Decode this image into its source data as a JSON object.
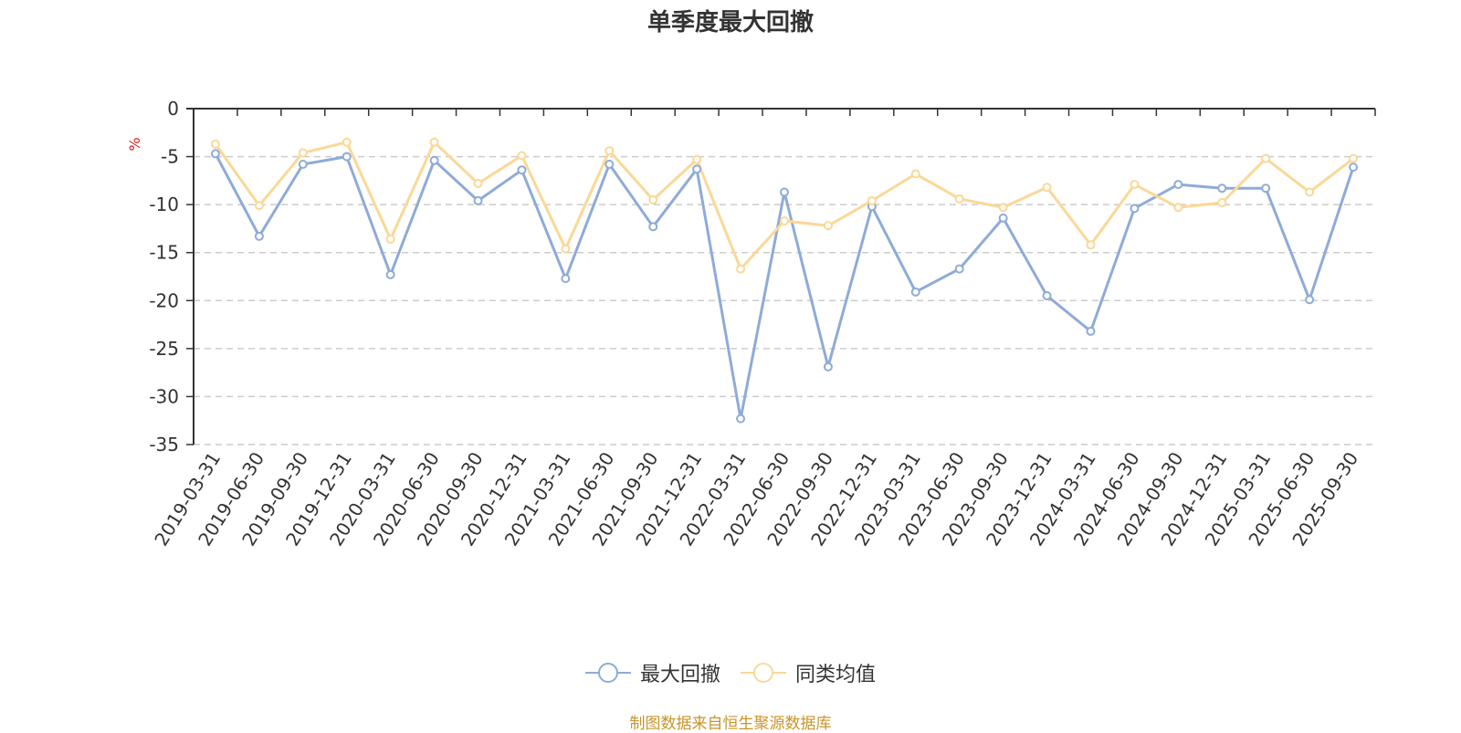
{
  "chart_data": {
    "type": "line",
    "title": "单季度最大回撤",
    "ylabel": "%",
    "ylim": [
      -35,
      0
    ],
    "yticks": [
      0,
      -5,
      -10,
      -15,
      -20,
      -25,
      -30,
      -35
    ],
    "grid": true,
    "legend_position": "bottom",
    "categories": [
      "2019-03-31",
      "2019-06-30",
      "2019-09-30",
      "2019-12-31",
      "2020-03-31",
      "2020-06-30",
      "2020-09-30",
      "2020-12-31",
      "2021-03-31",
      "2021-06-30",
      "2021-09-30",
      "2021-12-31",
      "2022-03-31",
      "2022-06-30",
      "2022-09-30",
      "2022-12-31",
      "2023-03-31",
      "2023-06-30",
      "2023-09-30",
      "2023-12-31",
      "2024-03-31",
      "2024-06-30",
      "2024-09-30",
      "2024-12-31",
      "2025-03-31",
      "2025-06-30",
      "2025-09-30"
    ],
    "series": [
      {
        "name": "最大回撤",
        "color": "#8eabd8",
        "values": [
          -4.7,
          -13.3,
          -5.8,
          -5.0,
          -17.3,
          -5.4,
          -9.6,
          -6.4,
          -17.7,
          -5.8,
          -12.3,
          -6.3,
          -32.3,
          -8.7,
          -26.9,
          -10.2,
          -19.1,
          -16.7,
          -11.4,
          -19.5,
          -23.2,
          -10.4,
          -7.9,
          -8.3,
          -8.3,
          -19.9,
          -6.1
        ]
      },
      {
        "name": "同类均值",
        "color": "#fad896",
        "values": [
          -3.7,
          -10.1,
          -4.6,
          -3.5,
          -13.6,
          -3.5,
          -7.8,
          -4.9,
          -14.6,
          -4.4,
          -9.5,
          -5.3,
          -16.7,
          -11.7,
          -12.2,
          -9.6,
          -6.8,
          -9.4,
          -10.3,
          -8.2,
          -14.2,
          -7.9,
          -10.3,
          -9.8,
          -5.2,
          -8.7,
          -5.2
        ]
      }
    ],
    "source_note": "制图数据来自恒生聚源数据库"
  }
}
